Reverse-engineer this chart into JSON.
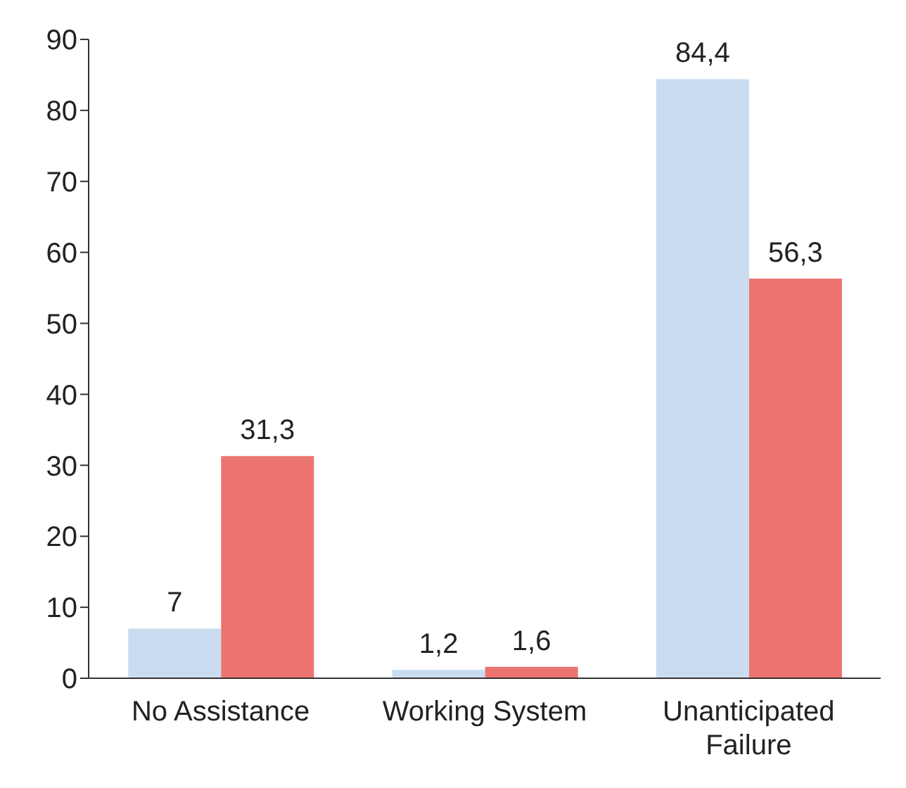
{
  "chart_data": {
    "type": "bar",
    "categories": [
      "No Assistance",
      "Working System",
      "Unanticipated Failure"
    ],
    "series": [
      {
        "color": "#cadcf0",
        "values": [
          7,
          1.2,
          84.4
        ],
        "value_labels": [
          "7",
          "1,2",
          "84,4"
        ]
      },
      {
        "color": "#ec7470",
        "values": [
          31.3,
          1.6,
          56.3
        ],
        "value_labels": [
          "31,3",
          "1,6",
          "56,3"
        ]
      }
    ],
    "ylim": [
      0,
      90
    ],
    "yticks": [
      0,
      10,
      20,
      30,
      40,
      50,
      60,
      70,
      80,
      90
    ],
    "grid": false,
    "legend": false
  }
}
